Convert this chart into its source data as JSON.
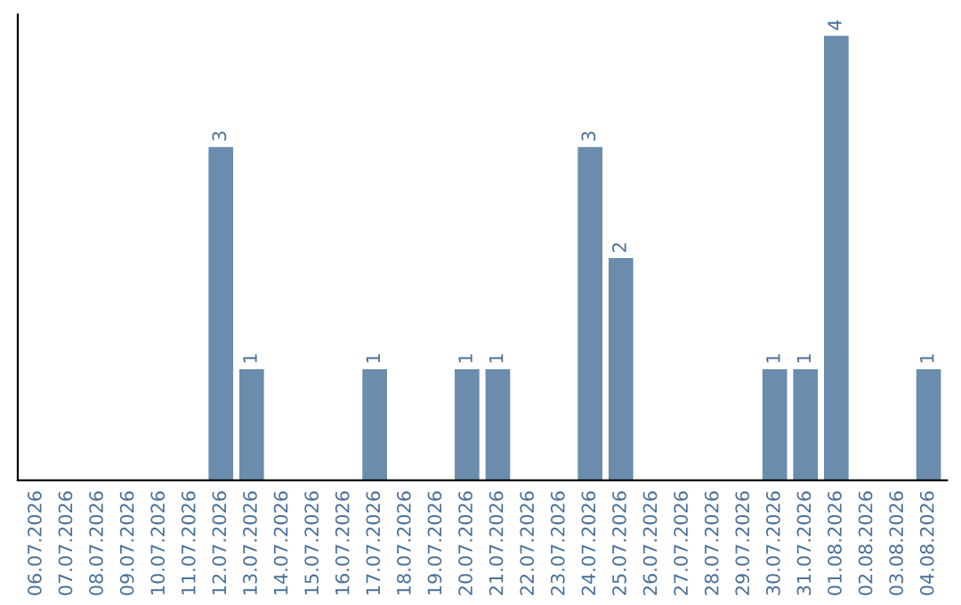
{
  "chart_data": {
    "type": "bar",
    "categories": [
      "06.07.2026",
      "07.07.2026",
      "08.07.2026",
      "09.07.2026",
      "10.07.2026",
      "11.07.2026",
      "12.07.2026",
      "13.07.2026",
      "14.07.2026",
      "15.07.2026",
      "16.07.2026",
      "17.07.2026",
      "18.07.2026",
      "19.07.2026",
      "20.07.2026",
      "21.07.2026",
      "22.07.2026",
      "23.07.2026",
      "24.07.2026",
      "25.07.2026",
      "26.07.2026",
      "27.07.2026",
      "28.07.2026",
      "29.07.2026",
      "30.07.2026",
      "31.07.2026",
      "01.08.2026",
      "02.08.2026",
      "03.08.2026",
      "04.08.2026"
    ],
    "values": [
      0,
      0,
      0,
      0,
      0,
      0,
      3,
      1,
      0,
      0,
      0,
      1,
      0,
      0,
      1,
      1,
      0,
      0,
      3,
      2,
      0,
      0,
      0,
      0,
      1,
      1,
      4,
      0,
      0,
      1
    ],
    "value_labels": [
      null,
      null,
      null,
      null,
      null,
      null,
      "3",
      "1",
      null,
      null,
      null,
      "1",
      null,
      null,
      "1",
      "1",
      null,
      null,
      "3",
      "2",
      null,
      null,
      null,
      null,
      "1",
      "1",
      "4",
      null,
      null,
      "1"
    ],
    "color": "#6a8cad",
    "tick_labels": "x",
    "grid": false,
    "legend": false
  }
}
